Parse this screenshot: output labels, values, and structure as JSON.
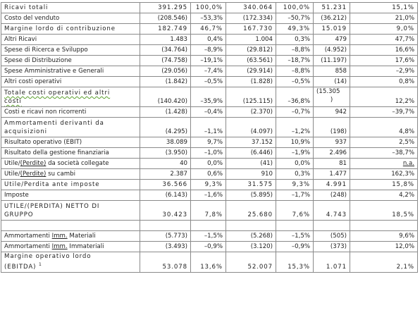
{
  "rows": [
    {
      "label": "Ricavi totali",
      "v": [
        "391.295",
        "100,0%",
        "340.064",
        "100,0%",
        "51.231",
        "15,1%"
      ]
    },
    {
      "label": "Costo del venduto",
      "v": [
        "(208.546)",
        "–53,3%",
        "(172.334)",
        "–50,7%",
        "(36.212)",
        "21,0%"
      ]
    },
    {
      "label": "Margine lordo di contribuzione",
      "v": [
        "182.749",
        "46,7%",
        "167.730",
        "49,3%",
        "15.019",
        "9,0%"
      ]
    },
    {
      "label": "Altri Ricavi",
      "v": [
        "1.483",
        "0,4%",
        "1.004",
        "0,3%",
        "479",
        "47,7%"
      ]
    },
    {
      "label": "Spese di Ricerca e Sviluppo",
      "v": [
        "(34.764)",
        "–8,9%",
        "(29.812)",
        "–8,8%",
        "(4.952)",
        "16,6%"
      ]
    },
    {
      "label": "Spese di Distribuzione",
      "v": [
        "(74.758)",
        "–19,1%",
        "(63.561)",
        "–18,7%",
        "(11.197)",
        "17,6%"
      ]
    },
    {
      "label": "Spese Amministrative e Generali",
      "v": [
        "(29.056)",
        "–7,4%",
        "(29.914)",
        "–8,8%",
        "858",
        "–2,9%"
      ]
    },
    {
      "label": "Altri costi operativi",
      "v": [
        "(1.842)",
        "–0,5%",
        "(1.828)",
        "–0,5%",
        "(14)",
        "0,8%"
      ]
    },
    {
      "label_a": "Totale costi operativi ed altri",
      "label_b": "costi",
      "v": [
        "(140.420)",
        "–35,9%",
        "(125.115)",
        "–36,8%",
        "(15.305\n)",
        "12,2%"
      ]
    },
    {
      "label": "Costi e ricavi non ricorrenti",
      "v": [
        "(1.428)",
        "–0,4%",
        "(2.370)",
        "–0,7%",
        "942",
        "–39,7%"
      ]
    },
    {
      "label_a": "Ammortamenti derivanti da",
      "label_b": "acquisizioni",
      "v": [
        "(4.295)",
        "–1,1%",
        "(4.097)",
        "–1,2%",
        "(198)",
        "4,8%"
      ]
    },
    {
      "label": "Risultato operativo (EBIT)",
      "v": [
        "38.089",
        "9,7%",
        "37.152",
        "10,9%",
        "937",
        "2,5%"
      ]
    },
    {
      "label": "Risultato della gestione finanziaria",
      "v": [
        "(3.950)",
        "–1,0%",
        "(6.446)",
        "–1,9%",
        "2.496",
        "–38,7%"
      ]
    },
    {
      "label": "Utile/(Perdite) da società collegate",
      "v": [
        "40",
        "0,0%",
        "(41)",
        "0,0%",
        "81",
        "n.a."
      ]
    },
    {
      "label": "Utile/(Perdite) su cambi",
      "v": [
        "2.387",
        "0,6%",
        "910",
        "0,3%",
        "1.477",
        "162,3%"
      ]
    },
    {
      "label": "Utile/Perdita ante imposte",
      "v": [
        "36.566",
        "9,3%",
        "31.575",
        "9,3%",
        "4.991",
        "15,8%"
      ]
    },
    {
      "label": "Imposte",
      "v": [
        "(6.143)",
        "–1,6%",
        "(5.895)",
        "–1,7%",
        "(248)",
        "4,2%"
      ]
    },
    {
      "label_a": "UTILE/(PERDITA) NETTO DI",
      "label_b": "GRUPPO",
      "v": [
        "30.423",
        "7,8%",
        "25.680",
        "7,6%",
        "4.743",
        "18,5%"
      ]
    },
    {
      "label": "Ammortamenti Imm. Materiali",
      "v": [
        "(5.773)",
        "–1,5%",
        "(5.268)",
        "–1,5%",
        "(505)",
        "9,6%"
      ]
    },
    {
      "label": "Ammortamenti Imm. Immateriali",
      "v": [
        "(3.493)",
        "–0,9%",
        "(3.120)",
        "–0,9%",
        "(373)",
        "12,0%"
      ]
    },
    {
      "label_a": "Margine operativo lordo",
      "label_b": "(EBITDA)",
      "footnote": "1",
      "v": [
        "53.078",
        "13,6%",
        "52.007",
        "15,3%",
        "1.071",
        "2,1%"
      ]
    }
  ]
}
